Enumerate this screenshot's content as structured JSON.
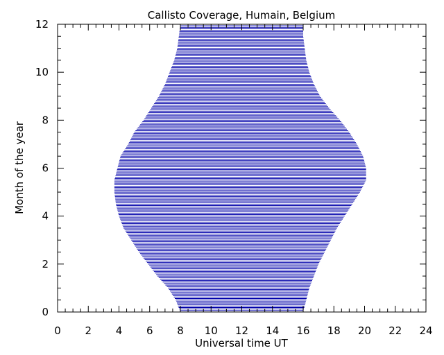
{
  "chart_data": {
    "type": "area",
    "title": "Callisto Coverage, Humain, Belgium",
    "xlabel": "Universal time UT",
    "ylabel": "Month of the year",
    "xlim": [
      0,
      24
    ],
    "ylim": [
      0,
      12
    ],
    "x_ticks": [
      0,
      2,
      4,
      6,
      8,
      10,
      12,
      14,
      16,
      18,
      20,
      22,
      24
    ],
    "y_ticks": [
      0,
      2,
      4,
      6,
      8,
      10,
      12
    ],
    "x_minor_step": 0.5,
    "y_minor_step": 0.5,
    "grid": false,
    "line_color": "#0000aa",
    "month_step": 0.0625,
    "coverage": {
      "month": [
        0,
        0.5,
        1,
        1.5,
        2,
        2.5,
        3,
        3.5,
        4,
        4.5,
        5,
        5.5,
        6,
        6.5,
        7,
        7.5,
        8,
        8.5,
        9,
        9.5,
        10,
        10.5,
        11,
        11.5,
        12
      ],
      "start_ut": [
        8.0,
        7.7,
        7.2,
        6.5,
        5.9,
        5.3,
        4.8,
        4.3,
        4.0,
        3.8,
        3.7,
        3.7,
        3.9,
        4.1,
        4.6,
        5.0,
        5.6,
        6.1,
        6.6,
        7.0,
        7.3,
        7.6,
        7.8,
        7.9,
        8.0
      ],
      "end_ut": [
        16.0,
        16.2,
        16.4,
        16.7,
        17.0,
        17.4,
        17.8,
        18.2,
        18.7,
        19.2,
        19.7,
        20.1,
        20.1,
        19.9,
        19.5,
        19.0,
        18.4,
        17.7,
        17.1,
        16.7,
        16.4,
        16.2,
        16.1,
        16.0,
        16.0
      ]
    }
  }
}
